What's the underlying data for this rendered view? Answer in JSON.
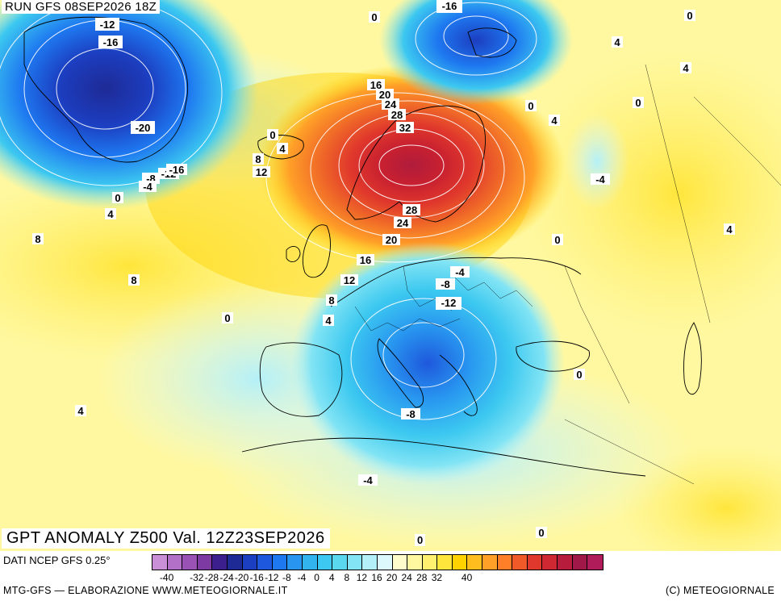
{
  "header": {
    "run_label": "RUN GFS 08SEP2026 18Z"
  },
  "map": {
    "title": "GPT ANOMALY Z500 Val. 12Z23SEP2026",
    "contour_labels": [
      "-12",
      "-16",
      "-20",
      "-8",
      "-12",
      "-16",
      "-4",
      "0",
      "4",
      "8",
      "8",
      "-16",
      "0",
      "0",
      "4",
      "4",
      "0",
      "4",
      "0",
      "-4",
      "4",
      "16",
      "20",
      "24",
      "28",
      "32",
      "28",
      "24",
      "20",
      "16",
      "12",
      "8",
      "4",
      "0",
      "8",
      "12",
      "4",
      "-4",
      "-8",
      "-12",
      "0",
      "0",
      "-8",
      "4",
      "-4",
      "0",
      "0"
    ]
  },
  "legend": {
    "source": "DATI NCEP GFS 0.25°",
    "colors": [
      "#c990d8",
      "#b270c8",
      "#9a52b4",
      "#7c3aa2",
      "#3c1e8c",
      "#1e2a96",
      "#1c3ec0",
      "#1e58dc",
      "#1e78f0",
      "#2896f0",
      "#32b4ee",
      "#3cc8f0",
      "#5ad8f0",
      "#82e4f4",
      "#b4f0f8",
      "#dcf8fc",
      "#fffccc",
      "#fff8a0",
      "#fff070",
      "#ffe63c",
      "#ffd200",
      "#ffbe1e",
      "#ffa028",
      "#ff7e28",
      "#f05a28",
      "#e0382c",
      "#d02832",
      "#b81c3c",
      "#a01848",
      "#b01c5a"
    ],
    "ticks": [
      "-40",
      "-32",
      "-28",
      "-24",
      "-20",
      "-16",
      "-12",
      "-8",
      "-4",
      "0",
      "4",
      "8",
      "12",
      "16",
      "20",
      "24",
      "28",
      "32",
      "40"
    ]
  },
  "footer": {
    "credit_left": "MTG-GFS — ELABORAZIONE WWW.METEOGIORNALE.IT",
    "credit_right": "(C) METEOGIORNALE"
  }
}
